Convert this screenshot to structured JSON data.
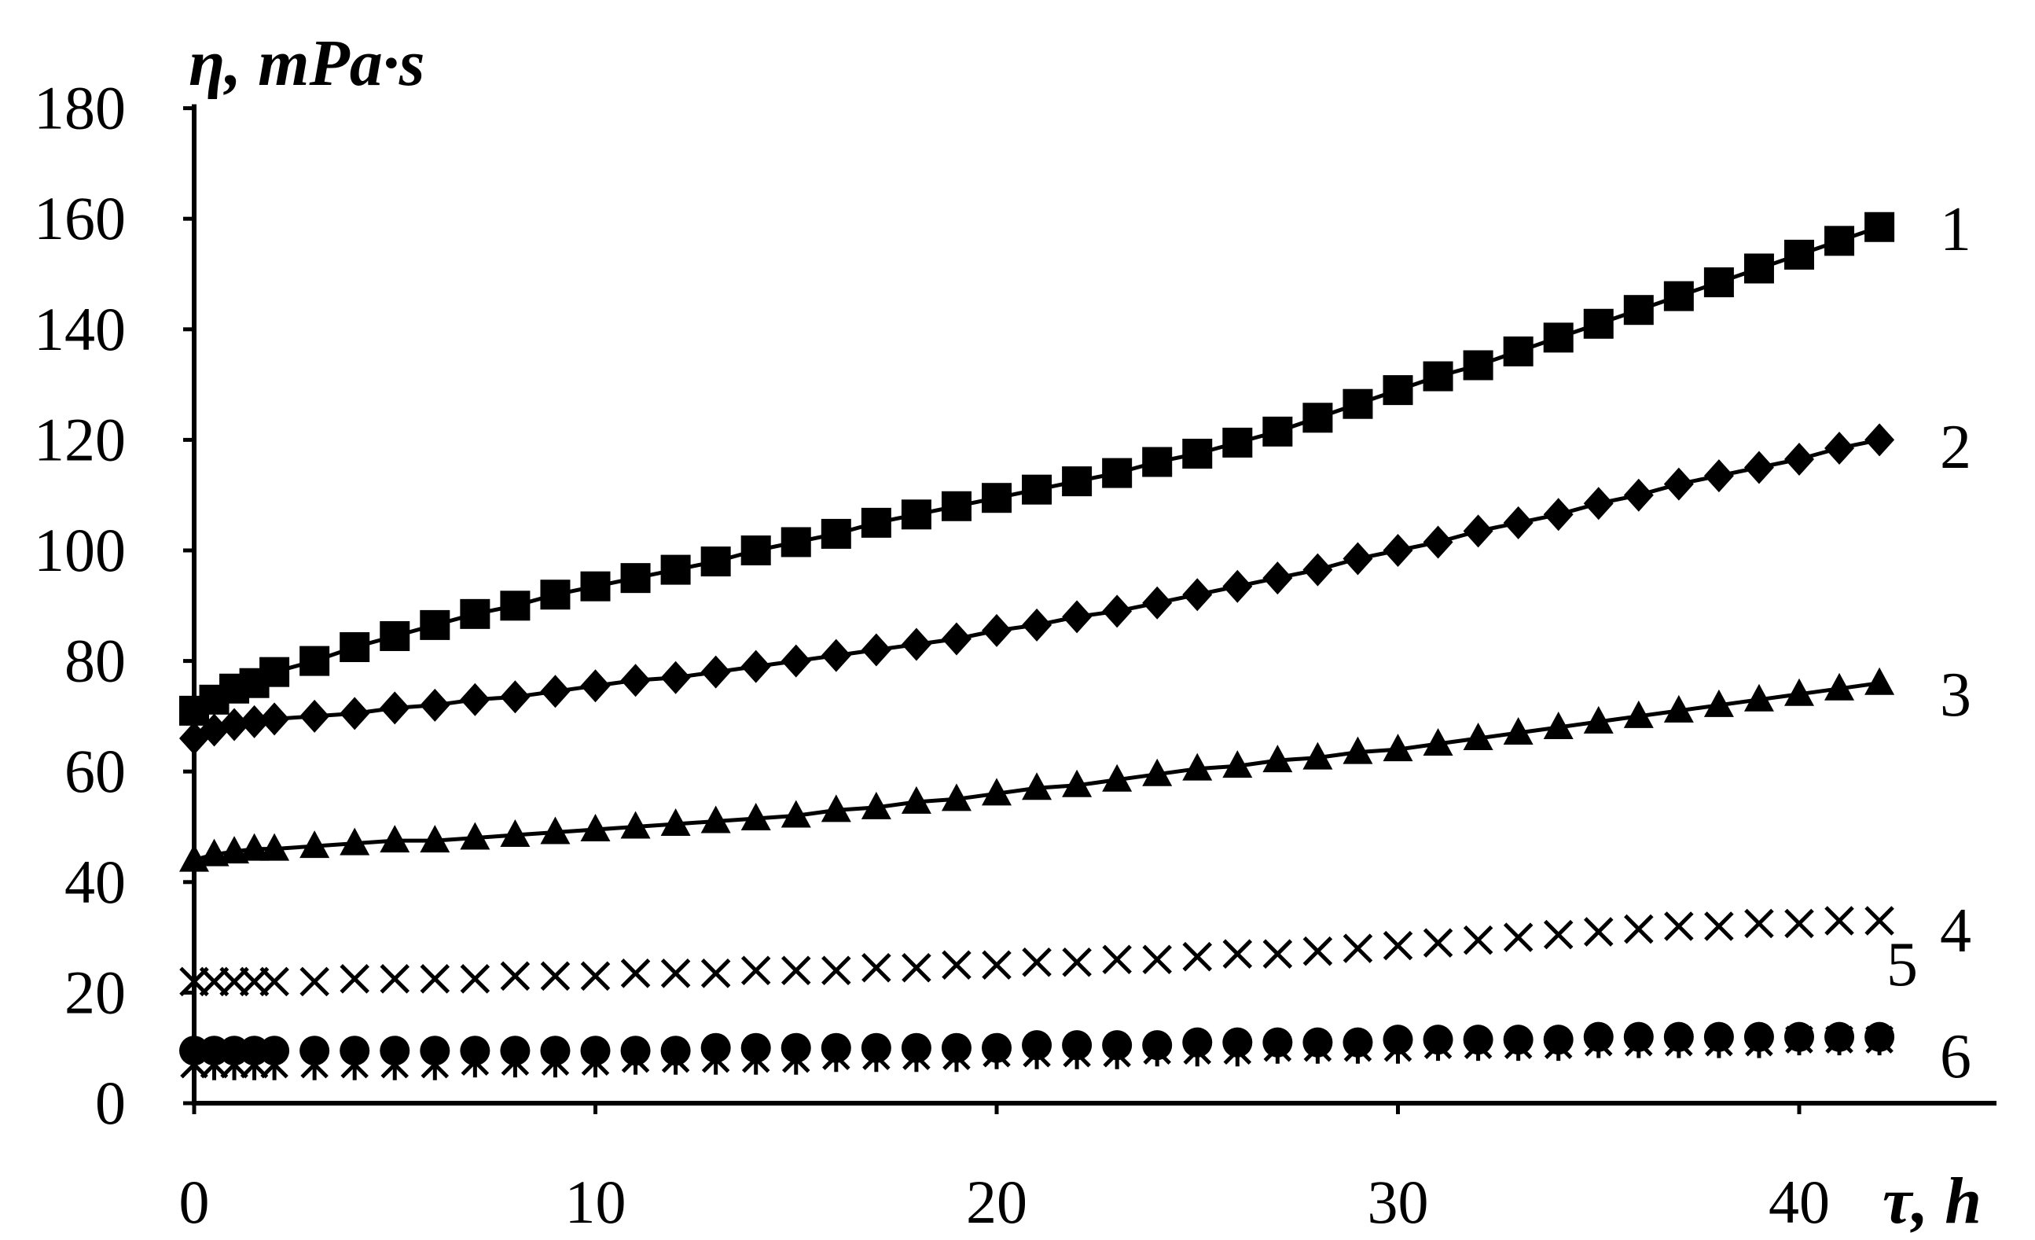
{
  "chart_data": {
    "type": "scatter",
    "title": "",
    "xlabel": "τ, h",
    "ylabel": "η, mPa·s",
    "xlim": [
      0,
      45
    ],
    "ylim": [
      0,
      180
    ],
    "xticks": [
      0,
      10,
      20,
      30,
      40
    ],
    "yticks": [
      0,
      20,
      40,
      60,
      80,
      100,
      120,
      140,
      160,
      180
    ],
    "grid": false,
    "legend": "none",
    "series": [
      {
        "label": "1",
        "marker": "square",
        "trend": true,
        "x": [
          0,
          0.5,
          1,
          1.5,
          2,
          3,
          4,
          5,
          6,
          7,
          8,
          9,
          10,
          11,
          12,
          13,
          14,
          15,
          16,
          17,
          18,
          19,
          20,
          21,
          22,
          23,
          24,
          25,
          26,
          27,
          28,
          29,
          30,
          31,
          32,
          33,
          34,
          35,
          36,
          37,
          38,
          39,
          40,
          41,
          42
        ],
        "y": [
          71,
          73,
          75,
          76,
          78,
          80,
          82.5,
          84.5,
          86.5,
          88.5,
          90,
          92,
          93.5,
          95,
          96.5,
          98,
          100,
          101.5,
          103,
          105,
          106.5,
          108,
          109.5,
          111,
          112.5,
          114,
          116,
          117.5,
          119.5,
          121.5,
          124,
          126.5,
          129,
          131.5,
          133.5,
          136,
          138.5,
          141,
          143.5,
          146,
          148.5,
          151,
          153.5,
          156,
          158.5
        ]
      },
      {
        "label": "2",
        "marker": "diamond",
        "trend": true,
        "x": [
          0,
          0.5,
          1,
          1.5,
          2,
          3,
          4,
          5,
          6,
          7,
          8,
          9,
          10,
          11,
          12,
          13,
          14,
          15,
          16,
          17,
          18,
          19,
          20,
          21,
          22,
          23,
          24,
          25,
          26,
          27,
          28,
          29,
          30,
          31,
          32,
          33,
          34,
          35,
          36,
          37,
          38,
          39,
          40,
          41,
          42
        ],
        "y": [
          66,
          67.5,
          68.5,
          69,
          69.5,
          70,
          70.5,
          71.5,
          72,
          73,
          73.5,
          74.5,
          75.5,
          76.5,
          77,
          78,
          79,
          80,
          81,
          82,
          83,
          84,
          85.5,
          86.5,
          88,
          89,
          90.5,
          92,
          93.5,
          95,
          96.5,
          98.5,
          100,
          101.5,
          103.5,
          105,
          106.5,
          108.5,
          110,
          112,
          113.5,
          115,
          116.5,
          118.5,
          120
        ]
      },
      {
        "label": "3",
        "marker": "triangle",
        "trend": true,
        "x": [
          0,
          0.5,
          1,
          1.5,
          2,
          3,
          4,
          5,
          6,
          7,
          8,
          9,
          10,
          11,
          12,
          13,
          14,
          15,
          16,
          17,
          18,
          19,
          20,
          21,
          22,
          23,
          24,
          25,
          26,
          27,
          28,
          29,
          30,
          31,
          32,
          33,
          34,
          35,
          36,
          37,
          38,
          39,
          40,
          41,
          42
        ],
        "y": [
          44,
          45,
          45.5,
          46,
          46,
          46.5,
          47,
          47.5,
          47.5,
          48,
          48.5,
          49,
          49.5,
          50,
          50.5,
          51,
          51.5,
          52,
          53,
          53.5,
          54.5,
          55,
          56,
          57,
          57.5,
          58.5,
          59.5,
          60.5,
          61,
          62,
          62.5,
          63.5,
          64,
          65,
          66,
          67,
          68,
          69,
          70,
          71,
          72,
          73,
          74,
          75,
          76
        ]
      },
      {
        "label": "4",
        "marker": "x",
        "trend": false,
        "x": [
          0,
          0.5,
          1,
          1.5,
          2,
          3,
          4,
          5,
          6,
          7,
          8,
          9,
          10,
          11,
          12,
          13,
          14,
          15,
          16,
          17,
          18,
          19,
          20,
          21,
          22,
          23,
          24,
          25,
          26,
          27,
          28,
          29,
          30,
          31,
          32,
          33,
          34,
          35,
          36,
          37,
          38,
          39,
          40,
          41,
          42
        ],
        "y": [
          22,
          22,
          22,
          22,
          22,
          22,
          22.5,
          22.5,
          22.5,
          22.5,
          23,
          23,
          23,
          23.5,
          23.5,
          23.5,
          24,
          24,
          24,
          24.5,
          24.5,
          25,
          25,
          25.5,
          25.5,
          26,
          26,
          26.5,
          27,
          27,
          27.5,
          28,
          28.5,
          29,
          29.5,
          30,
          30.5,
          31,
          31.5,
          32,
          32,
          32.5,
          32.5,
          33,
          33
        ]
      },
      {
        "label": "5",
        "marker": "star",
        "trend": false,
        "x": [
          0,
          0.5,
          1,
          1.5,
          2,
          3,
          4,
          5,
          6,
          7,
          8,
          9,
          10,
          11,
          12,
          13,
          14,
          15,
          16,
          17,
          18,
          19,
          20,
          21,
          22,
          23,
          24,
          25,
          26,
          27,
          28,
          29,
          30,
          31,
          32,
          33,
          34,
          35,
          36,
          37,
          38,
          39,
          40,
          41,
          42
        ],
        "y": [
          7,
          7,
          7,
          7,
          7,
          7,
          7,
          7,
          7,
          7.5,
          7.5,
          7.5,
          7.5,
          8,
          8,
          8,
          8,
          8,
          8.5,
          8.5,
          8.5,
          8.5,
          9,
          9,
          9,
          9,
          9.5,
          9.5,
          9.5,
          10,
          10,
          10,
          10,
          10.5,
          10.5,
          10.5,
          10.5,
          11,
          11,
          11,
          11,
          11,
          11.5,
          11.5,
          11.5
        ]
      },
      {
        "label": "6",
        "marker": "circle",
        "trend": false,
        "x": [
          0,
          0.5,
          1,
          1.5,
          2,
          3,
          4,
          5,
          6,
          7,
          8,
          9,
          10,
          11,
          12,
          13,
          14,
          15,
          16,
          17,
          18,
          19,
          20,
          21,
          22,
          23,
          24,
          25,
          26,
          27,
          28,
          29,
          30,
          31,
          32,
          33,
          34,
          35,
          36,
          37,
          38,
          39,
          40,
          41,
          42
        ],
        "y": [
          9.5,
          9.5,
          9.5,
          9.5,
          9.5,
          9.5,
          9.5,
          9.5,
          9.5,
          9.5,
          9.5,
          9.5,
          9.5,
          9.5,
          9.5,
          10,
          10,
          10,
          10,
          10,
          10,
          10,
          10,
          10.5,
          10.5,
          10.5,
          10.5,
          11,
          11,
          11,
          11,
          11,
          11.5,
          11.5,
          11.5,
          11.5,
          11.5,
          12,
          12,
          12,
          12,
          12,
          12,
          12,
          12
        ]
      }
    ]
  }
}
